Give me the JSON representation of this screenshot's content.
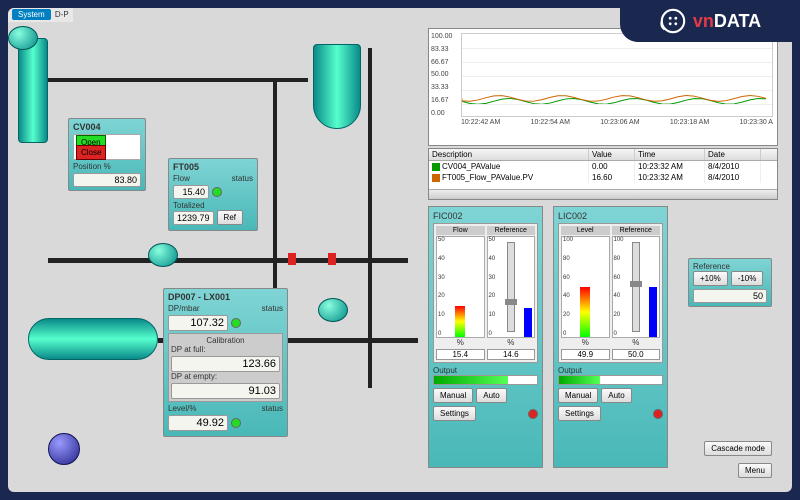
{
  "brand": {
    "red": "vn",
    "white": "DATA"
  },
  "toolbar": {
    "tab1": "System",
    "tab2": "D-P"
  },
  "cv004": {
    "title": "CV004",
    "open": "Open",
    "close": "Close",
    "pos_label": "Position %",
    "pos_value": "83.80"
  },
  "ft005": {
    "title": "FT005",
    "flow_label": "Flow",
    "status_label": "status",
    "flow_value": "15.40",
    "tot_label": "Totalized",
    "tot_value": "1239.79",
    "ref_btn": "Ref"
  },
  "dp007": {
    "title": "DP007 - LX001",
    "dp_label": "DP/mbar",
    "status_label": "status",
    "dp_value": "107.32",
    "cal_label": "Calibration",
    "full_label": "DP at full:",
    "full_value": "123.66",
    "empty_label": "DP at empty:",
    "empty_value": "91.03",
    "level_label": "Level/%",
    "level_value": "49.92"
  },
  "chart": {
    "ylim": [
      0,
      100
    ],
    "yticks": [
      "100.00",
      "83.33",
      "66.67",
      "50.00",
      "33.33",
      "16.67",
      "0.00"
    ],
    "xticks": [
      "10:22:42 AM",
      "10:22:54 AM",
      "10:23:06 AM",
      "10:23:18 AM",
      "10:23:30 A"
    ],
    "series": [
      {
        "name": "CV004_PAValue",
        "color": "#009900",
        "wave": 15
      },
      {
        "name": "FT005_Flow_PAValue.PV",
        "color": "#cc6600",
        "wave": 18
      }
    ]
  },
  "table": {
    "cols": [
      "Description",
      "Value",
      "Time",
      "Date"
    ],
    "widths": [
      160,
      46,
      70,
      56
    ],
    "rows": [
      {
        "color": "#009900",
        "desc": "CV004_PAValue",
        "value": "0.00",
        "time": "10:23:32 AM",
        "date": "8/4/2010"
      },
      {
        "color": "#cc6600",
        "desc": "FT005_Flow_PAValue.PV",
        "value": "16.60",
        "time": "10:23:32 AM",
        "date": "8/4/2010"
      }
    ]
  },
  "fic002": {
    "title": "FIC002",
    "flow_hdr": "Flow",
    "ref_hdr": "Reference",
    "scale": [
      "50",
      "40",
      "30",
      "20",
      "10",
      "0"
    ],
    "flow_val": "15.4",
    "ref_val": "14.6",
    "flow_pct": 31,
    "ref_pct": 29,
    "flow_color": "linear-gradient(#f00,#ff0,#0f0)",
    "ref_color": "#00f",
    "output_label": "Output",
    "output_pct": 72,
    "manual": "Manual",
    "auto": "Auto",
    "settings": "Settings",
    "pct": "%"
  },
  "lic002": {
    "title": "LIC002",
    "level_hdr": "Level",
    "ref_hdr": "Reference",
    "scale": [
      "100",
      "80",
      "60",
      "40",
      "20",
      "0"
    ],
    "level_val": "49.9",
    "ref_val": "50.0",
    "level_pct": 50,
    "ref_pct": 50,
    "level_color": "linear-gradient(#f00,#ff0,#0f0)",
    "ref_color": "#00f",
    "output_label": "Output",
    "output_pct": 40,
    "manual": "Manual",
    "auto": "Auto",
    "settings": "Settings",
    "pct": "%"
  },
  "reference": {
    "title": "Reference",
    "plus": "+10%",
    "minus": "-10%",
    "value": "50"
  },
  "cascade": "Cascade mode",
  "menu": "Menu"
}
